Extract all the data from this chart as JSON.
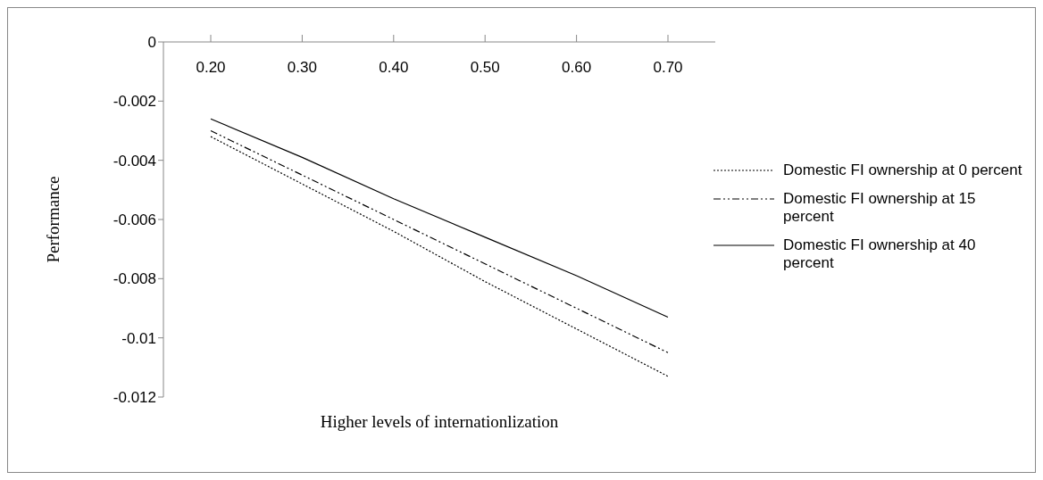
{
  "chart_data": {
    "type": "line",
    "xlabel": "Higher levels of internationlization",
    "ylabel": "Performance",
    "categories": [
      "0.20",
      "0.30",
      "0.40",
      "0.50",
      "0.60",
      "0.70"
    ],
    "series": [
      {
        "name": "Domestic FI ownership at 0 percent",
        "color": "#000000",
        "line_style": "dotted",
        "values": [
          -0.0032,
          -0.0048,
          -0.0064,
          -0.0081,
          -0.0097,
          -0.0113
        ]
      },
      {
        "name": "Domestic FI ownership at 15 percent",
        "color": "#000000",
        "line_style": "dashdot",
        "values": [
          -0.003,
          -0.0045,
          -0.006,
          -0.0075,
          -0.009,
          -0.0105
        ]
      },
      {
        "name": "Domestic FI ownership at 40 percent",
        "color": "#000000",
        "line_style": "solid",
        "values": [
          -0.0026,
          -0.0039,
          -0.0053,
          -0.0066,
          -0.0079,
          -0.0093
        ]
      }
    ],
    "ylim": [
      -0.012,
      0
    ],
    "yticks": [
      0,
      -0.002,
      -0.004,
      -0.006,
      -0.008,
      -0.01,
      -0.012
    ],
    "grid": false,
    "legend": "right",
    "marker": "none"
  }
}
